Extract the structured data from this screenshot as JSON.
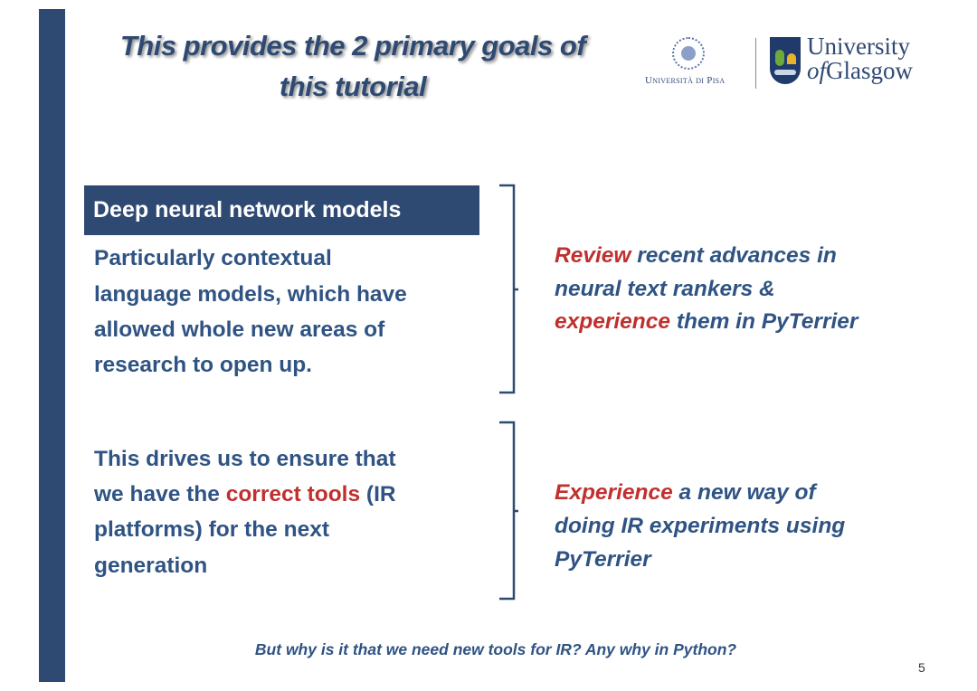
{
  "slide": {
    "title_lines": [
      "This provides the 2 primary goals of",
      "this tutorial"
    ],
    "logos": {
      "pisa": "Università di Pisa",
      "glasgow_line1": "University",
      "glasgow_of": "of",
      "glasgow_line2": "Glasgow"
    },
    "section1": {
      "header": "Deep neural network models",
      "left_lines": [
        "Particularly contextual",
        "language models, which have",
        "allowed whole new areas of",
        "research to open up."
      ],
      "right": {
        "l1_red": "Review",
        "l1_rest": " recent advances in",
        "l2": "neural text rankers &",
        "l3_red": "experience",
        "l3_rest": " them in PyTerrier"
      }
    },
    "section2": {
      "left": {
        "l1": "This drives us to ensure that",
        "l2_pre": "we have the ",
        "l2_red": "correct tools",
        "l2_post": " (IR",
        "l3": "platforms) for the next",
        "l4": "generation"
      },
      "right": {
        "l1_red": "Experience",
        "l1_rest": " a new way of",
        "l2": "doing IR experiments using",
        "l3": "PyTerrier"
      }
    },
    "footer": "But why is it that we need new tools for IR? Any why in Python?",
    "page_number": "5",
    "colors": {
      "navy": "#2f4a72",
      "text_blue": "#2f5383",
      "accent_red": "#c0302f"
    }
  }
}
